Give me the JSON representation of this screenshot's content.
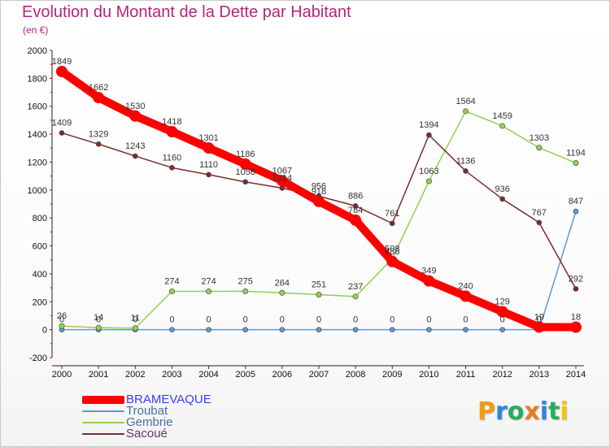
{
  "title": "Evolution du Montant de la Dette par Habitant",
  "subtitle": "(en €)",
  "logo_text": "Proxiti",
  "chart_data": {
    "type": "line",
    "title": "Evolution du Montant de la Dette par Habitant",
    "subtitle": "(en €)",
    "xlabel": "",
    "ylabel": "",
    "x": [
      2000,
      2001,
      2002,
      2003,
      2004,
      2005,
      2006,
      2007,
      2008,
      2009,
      2010,
      2011,
      2012,
      2013,
      2014
    ],
    "yticks": [
      -200,
      0,
      200,
      400,
      600,
      800,
      1000,
      1200,
      1400,
      1600,
      1800,
      2000
    ],
    "ylim": [
      -200,
      2000
    ],
    "grid": false,
    "legend_position": "bottom-left",
    "series": [
      {
        "name": "BRAMEVAQUE",
        "color": "#ff0000",
        "values": [
          1849,
          1662,
          1530,
          1418,
          1301,
          1186,
          1067,
          918,
          784,
          488,
          349,
          240,
          129,
          19,
          18
        ]
      },
      {
        "name": "Troubat",
        "color": "#5b9bd5",
        "values": [
          0,
          0,
          0,
          0,
          0,
          0,
          0,
          0,
          0,
          0,
          0,
          0,
          0,
          0,
          847
        ]
      },
      {
        "name": "Gembrie",
        "color": "#92d050",
        "values": [
          26,
          14,
          11,
          274,
          274,
          275,
          264,
          251,
          237,
          508,
          1063,
          1564,
          1459,
          1303,
          1194
        ]
      },
      {
        "name": "Sacoué",
        "color": "#7b2c2c",
        "values": [
          1409,
          1329,
          1243,
          1160,
          1110,
          1058,
          1014,
          956,
          886,
          761,
          1394,
          1136,
          936,
          767,
          292
        ]
      }
    ]
  }
}
